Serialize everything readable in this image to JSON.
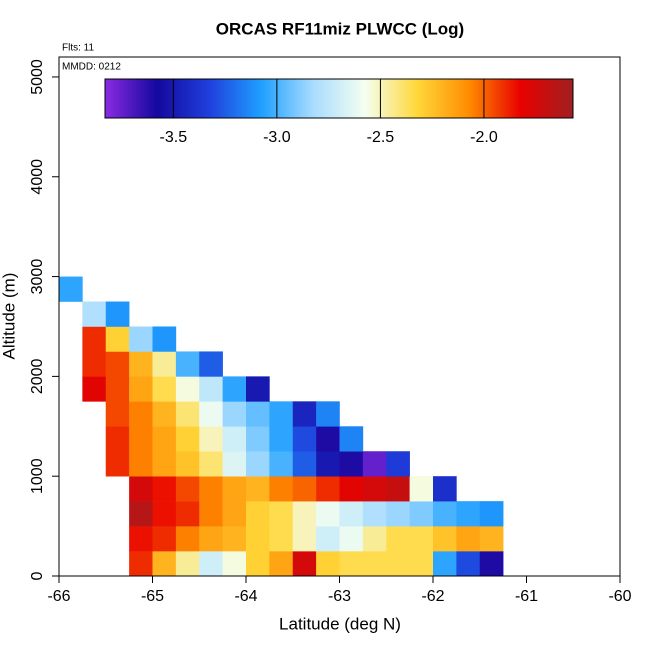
{
  "chart_data": {
    "type": "heatmap",
    "title": "ORCAS RF11miz PLWCC (Log)",
    "xlabel": "Latitude (deg N)",
    "ylabel": "Altitude (m)",
    "annotations": [
      "Flts: 11",
      "MMDD: 0212"
    ],
    "xlim": [
      -66,
      -60
    ],
    "ylim": [
      0,
      5200
    ],
    "xticks": [
      -66,
      -65,
      -64,
      -63,
      -62,
      -61,
      -60
    ],
    "yticks": [
      0,
      1000,
      2000,
      3000,
      4000,
      5000
    ],
    "x": [
      -66,
      -65.75,
      -65.5,
      -65.25,
      -65,
      -64.75,
      -64.5,
      -64.25,
      -64,
      -63.75,
      -63.5,
      -63.25,
      -63,
      -62.75,
      -62.5,
      -62.25,
      -62,
      -61.75,
      -61.5,
      -61.25
    ],
    "y": [
      0,
      250,
      500,
      750,
      1000,
      1250,
      1500,
      1750,
      2000,
      2250,
      2500,
      2750,
      3000
    ],
    "z": [
      [
        null,
        null,
        null,
        -1.9,
        -2.2,
        -2.45,
        -2.7,
        -2.55,
        -2.3,
        -2.15,
        -1.75,
        -2.3,
        -2.35,
        -2.35,
        -2.35,
        -2.35,
        -3.05,
        -3.3,
        -3.6
      ],
      [
        null,
        null,
        null,
        -1.85,
        -1.9,
        -2.05,
        -2.15,
        -2.2,
        -2.3,
        -2.35,
        -2.5,
        -2.7,
        -2.6,
        -2.45,
        -2.35,
        -2.35,
        -2.25,
        -2.15,
        -2.2
      ],
      [
        null,
        null,
        null,
        -1.65,
        -1.85,
        -1.9,
        -2.05,
        -2.15,
        -2.3,
        -2.35,
        -2.5,
        -2.6,
        -2.7,
        -2.8,
        -2.85,
        -2.9,
        -3.0,
        -3.05,
        -3.1
      ],
      [
        null,
        null,
        null,
        -1.75,
        -1.85,
        -1.95,
        -2.05,
        -2.15,
        -2.2,
        -2.05,
        -2.0,
        -1.9,
        -1.8,
        -1.75,
        -1.7,
        -2.55,
        -3.4,
        null,
        null
      ],
      [
        null,
        null,
        -1.9,
        -2.05,
        -2.15,
        -2.25,
        -2.4,
        -2.65,
        -2.85,
        -3.0,
        -3.25,
        -3.5,
        -3.6,
        -3.75,
        -3.35,
        null,
        null,
        null,
        null
      ],
      [
        null,
        null,
        -1.9,
        -2.05,
        -2.15,
        -2.3,
        -2.5,
        -2.7,
        -2.9,
        -3.05,
        -3.3,
        -3.6,
        -3.15,
        null,
        null,
        null,
        null,
        null,
        null
      ],
      [
        null,
        null,
        -1.95,
        -2.05,
        -2.2,
        -2.4,
        -2.6,
        -2.85,
        -2.95,
        -3.05,
        -3.45,
        -3.15,
        null,
        null,
        null,
        null,
        null,
        null,
        null
      ],
      [
        null,
        -1.8,
        -1.95,
        -2.15,
        -2.35,
        -2.55,
        -2.75,
        -3.05,
        -3.5,
        null,
        null,
        null,
        null,
        null,
        null,
        null,
        null,
        null,
        null
      ],
      [
        null,
        -1.9,
        -1.95,
        -2.2,
        -2.45,
        -3.0,
        -3.25,
        null,
        null,
        null,
        null,
        null,
        null,
        null,
        null,
        null,
        null,
        null,
        null
      ],
      [
        null,
        -1.9,
        -2.3,
        -2.85,
        -3.1,
        null,
        null,
        null,
        null,
        null,
        null,
        null,
        null,
        null,
        null,
        null,
        null,
        null,
        null
      ],
      [
        null,
        -2.8,
        -3.1,
        null,
        null,
        null,
        null,
        null,
        null,
        null,
        null,
        null,
        null,
        null,
        null,
        null,
        null,
        null,
        null
      ],
      [
        -3.05,
        null,
        null,
        null,
        null,
        null,
        null,
        null,
        null,
        null,
        null,
        null,
        null,
        null,
        null,
        null,
        null,
        null,
        null
      ]
    ],
    "clim": [
      -3.83,
      -1.57
    ],
    "cticks": [
      -3.5,
      {
        "value": -3,
        "label": "-3.0"
      },
      -2.5,
      {
        "value": -2,
        "label": "-2.0"
      }
    ],
    "colorscale": [
      "#8a2be2",
      "#14089e",
      "#1f3fdc",
      "#1e9fff",
      "#a8dcff",
      "#f4fff0",
      "#ffd83a",
      "#ff8c00",
      "#e80000",
      "#a02020"
    ]
  }
}
